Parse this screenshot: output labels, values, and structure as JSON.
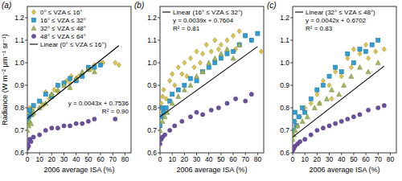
{
  "chart_data": [
    {
      "type": "scatter",
      "title": "(a)",
      "x_label": "2006 average ISA (%)",
      "y_label": "Radiance (W m⁻² μm⁻¹ sr⁻¹)",
      "xlim": [
        0,
        85
      ],
      "ylim": [
        0.6,
        1.25
      ],
      "xticks": [
        0,
        10,
        20,
        30,
        40,
        50,
        60,
        70,
        80
      ],
      "yticks": [
        0.6,
        0.7,
        0.8,
        0.9,
        {
          "value": 1,
          "label": "1.0"
        },
        1.1,
        1.2
      ],
      "legend": "top-left",
      "series": [
        {
          "name": "0° ≤ VZA ≤ 16°",
          "color": "#dcc44a",
          "marker": "diamond",
          "x": [
            0,
            0,
            1,
            1,
            2,
            2,
            3,
            4,
            5,
            5,
            10,
            12,
            13,
            15,
            18,
            20,
            22,
            25,
            30,
            32,
            35,
            36,
            40,
            42,
            45,
            50,
            52,
            55,
            60,
            62,
            72,
            75
          ],
          "values": [
            0.75,
            0.77,
            0.74,
            0.78,
            0.76,
            0.8,
            0.78,
            0.79,
            0.77,
            0.8,
            0.8,
            0.82,
            0.81,
            0.87,
            0.84,
            0.86,
            0.88,
            0.87,
            0.9,
            0.92,
            0.91,
            0.94,
            0.93,
            0.94,
            0.95,
            0.97,
            0.97,
            0.99,
            1.0,
            1.0,
            1.0,
            0.99
          ]
        },
        {
          "name": "16° ≤ VZA ≤ 32°",
          "color": "#2e9fd6",
          "marker": "square",
          "x": [
            0,
            1,
            2,
            3,
            5,
            10,
            15,
            20,
            25,
            30,
            35,
            40,
            45,
            50,
            55,
            60
          ],
          "values": [
            0.74,
            0.76,
            0.79,
            0.77,
            0.81,
            0.83,
            0.86,
            0.85,
            0.9,
            0.91,
            0.93,
            0.92,
            0.94,
            0.98,
            0.98,
            0.99
          ]
        },
        {
          "name": "32° ≤ VZA ≤ 48°",
          "color": "#9fb85a",
          "marker": "triangle",
          "x": [
            0,
            1,
            2,
            3,
            5,
            10,
            15,
            20,
            25,
            30,
            35,
            40,
            45,
            50,
            55
          ],
          "values": [
            0.7,
            0.72,
            0.74,
            0.73,
            0.78,
            0.8,
            0.82,
            0.86,
            0.88,
            0.9,
            0.89,
            0.93,
            0.96,
            0.97,
            0.96
          ]
        },
        {
          "name": "48° ≤ VZA ≤ 64°",
          "color": "#6b4fa0",
          "marker": "circle",
          "x": [
            0,
            0,
            1,
            2,
            3,
            5,
            10,
            15,
            20,
            25,
            30,
            35,
            40,
            45,
            50,
            55,
            72
          ],
          "values": [
            0.62,
            0.64,
            0.63,
            0.66,
            0.65,
            0.67,
            0.68,
            0.7,
            0.71,
            0.71,
            0.72,
            0.72,
            0.73,
            0.73,
            0.74,
            0.75,
            0.75
          ]
        },
        {
          "name": "Linear (0° ≤ VZA ≤ 16°)",
          "type": "line",
          "color": "#000000",
          "x": [
            0,
            75
          ],
          "values": [
            0.7536,
            1.076
          ]
        }
      ],
      "annotations": [
        "y = 0.0043x + 0.7536",
        "R² = 0.90"
      ]
    },
    {
      "type": "scatter",
      "title": "(b)",
      "x_label": "2006 average ISA (%)",
      "xlim": [
        0,
        85
      ],
      "ylim": [
        0.6,
        1.25
      ],
      "xticks": [
        0,
        10,
        20,
        30,
        40,
        50,
        60,
        70,
        80
      ],
      "yticks": [
        0.6,
        0.7,
        0.8,
        0.9,
        {
          "value": 1,
          "label": "1.0"
        },
        1.1,
        1.2
      ],
      "legend": "top-left",
      "series": [
        {
          "color": "#dcc44a",
          "marker": "diamond",
          "x": [
            0,
            1,
            2,
            3,
            5,
            8,
            10,
            12,
            15,
            18,
            20,
            22,
            25,
            28,
            30,
            33,
            35,
            38,
            40,
            42,
            45,
            48,
            50,
            55,
            60,
            62,
            65,
            70,
            75,
            83
          ],
          "values": [
            0.78,
            0.82,
            0.85,
            0.88,
            0.84,
            0.92,
            0.95,
            0.9,
            0.98,
            0.95,
            1.0,
            0.94,
            1.02,
            0.98,
            1.05,
            1.0,
            1.04,
            1.08,
            0.98,
            1.05,
            1.1,
            1.06,
            1.08,
            1.1,
            1.12,
            1.06,
            1.14,
            1.12,
            1.1,
            1.05
          ]
        },
        {
          "color": "#2e9fd6",
          "marker": "square",
          "x": [
            0,
            1,
            2,
            3,
            5,
            8,
            10,
            15,
            20,
            25,
            30,
            35,
            40,
            45,
            50,
            55,
            60,
            65,
            70,
            75,
            80
          ],
          "values": [
            0.72,
            0.76,
            0.8,
            0.78,
            0.8,
            0.83,
            0.86,
            0.88,
            0.9,
            0.93,
            0.92,
            0.96,
            0.98,
            1.0,
            1.02,
            1.04,
            1.05,
            1.08,
            1.12,
            1.1,
            1.13
          ]
        },
        {
          "color": "#9fb85a",
          "marker": "triangle",
          "x": [
            0,
            2,
            4,
            6,
            10,
            15,
            20,
            25,
            30,
            35,
            40,
            45,
            50,
            55,
            60,
            65
          ],
          "values": [
            0.7,
            0.74,
            0.76,
            0.78,
            0.82,
            0.85,
            0.88,
            0.9,
            0.94,
            0.96,
            1.0,
            1.02,
            1.04,
            1.06,
            1.02,
            1.08
          ]
        },
        {
          "color": "#6b4fa0",
          "marker": "circle",
          "x": [
            0,
            1,
            2,
            4,
            8,
            12,
            18,
            25,
            30,
            35,
            42,
            48,
            55,
            62,
            70,
            75
          ],
          "values": [
            0.64,
            0.66,
            0.67,
            0.68,
            0.7,
            0.72,
            0.74,
            0.76,
            0.78,
            0.77,
            0.79,
            0.8,
            0.82,
            0.84,
            0.83,
            0.86
          ]
        },
        {
          "name": "Linear (16° ≤ VZA ≤ 32°)",
          "type": "line",
          "color": "#000000",
          "x": [
            0,
            80
          ],
          "values": [
            0.7604,
            1.072
          ]
        }
      ],
      "annotations": [
        "y = 0.0039x + 0.7604",
        "R² = 0.81"
      ]
    },
    {
      "type": "scatter",
      "title": "(c)",
      "x_label": "2006 average ISA (%)",
      "xlim": [
        0,
        85
      ],
      "ylim": [
        0.6,
        1.25
      ],
      "xticks": [
        0,
        10,
        20,
        30,
        40,
        50,
        60,
        70,
        80
      ],
      "yticks": [
        0.6,
        0.7,
        0.8,
        0.9,
        {
          "value": 1,
          "label": "1.0"
        },
        1.1,
        1.2
      ],
      "legend": "top-left",
      "series": [
        {
          "color": "#dcc44a",
          "marker": "diamond",
          "x": [
            0,
            2,
            4,
            6,
            10,
            15,
            20,
            22,
            25,
            30,
            32,
            35,
            40,
            45,
            48,
            50,
            55,
            60,
            62,
            68,
            75
          ],
          "values": [
            0.7,
            0.74,
            0.72,
            0.76,
            0.8,
            0.82,
            0.86,
            0.82,
            0.92,
            0.9,
            0.84,
            0.96,
            0.94,
            1.02,
            0.98,
            1.06,
            1.04,
            1.08,
            1.02,
            1.05,
            1.06
          ]
        },
        {
          "color": "#2e9fd6",
          "marker": "square",
          "x": [
            0,
            1,
            2,
            3,
            5,
            8,
            10,
            15,
            20,
            25,
            30,
            35,
            40,
            45,
            50,
            55,
            60,
            65,
            70
          ],
          "values": [
            0.7,
            0.74,
            0.78,
            0.72,
            0.76,
            0.8,
            0.78,
            0.84,
            0.88,
            0.9,
            0.94,
            0.98,
            0.96,
            1.04,
            1.0,
            1.06,
            1.05,
            1.08,
            1.1
          ]
        },
        {
          "color": "#9fb85a",
          "marker": "triangle",
          "x": [
            0,
            1,
            2,
            4,
            8,
            12,
            18,
            22,
            28,
            32,
            38,
            42,
            48,
            55,
            62,
            70
          ],
          "values": [
            0.66,
            0.68,
            0.7,
            0.72,
            0.74,
            0.76,
            0.8,
            0.82,
            0.84,
            0.88,
            0.86,
            0.9,
            0.94,
            0.98,
            0.96,
            1.0
          ]
        },
        {
          "color": "#6b4fa0",
          "marker": "circle",
          "x": [
            0,
            1,
            2,
            4,
            6,
            10,
            15,
            20,
            25,
            30,
            35,
            40,
            45,
            50,
            55,
            62,
            70,
            75
          ],
          "values": [
            0.61,
            0.62,
            0.63,
            0.64,
            0.65,
            0.66,
            0.68,
            0.7,
            0.71,
            0.72,
            0.73,
            0.74,
            0.75,
            0.76,
            0.77,
            0.79,
            0.8,
            0.81
          ]
        },
        {
          "name": "Linear (32° ≤ VZA ≤ 48°)",
          "type": "line",
          "color": "#000000",
          "x": [
            0,
            75
          ],
          "values": [
            0.6702,
            0.9852
          ]
        }
      ],
      "annotations": [
        "y = 0.0042x + 0.6702",
        "R² = 0.83"
      ]
    }
  ]
}
